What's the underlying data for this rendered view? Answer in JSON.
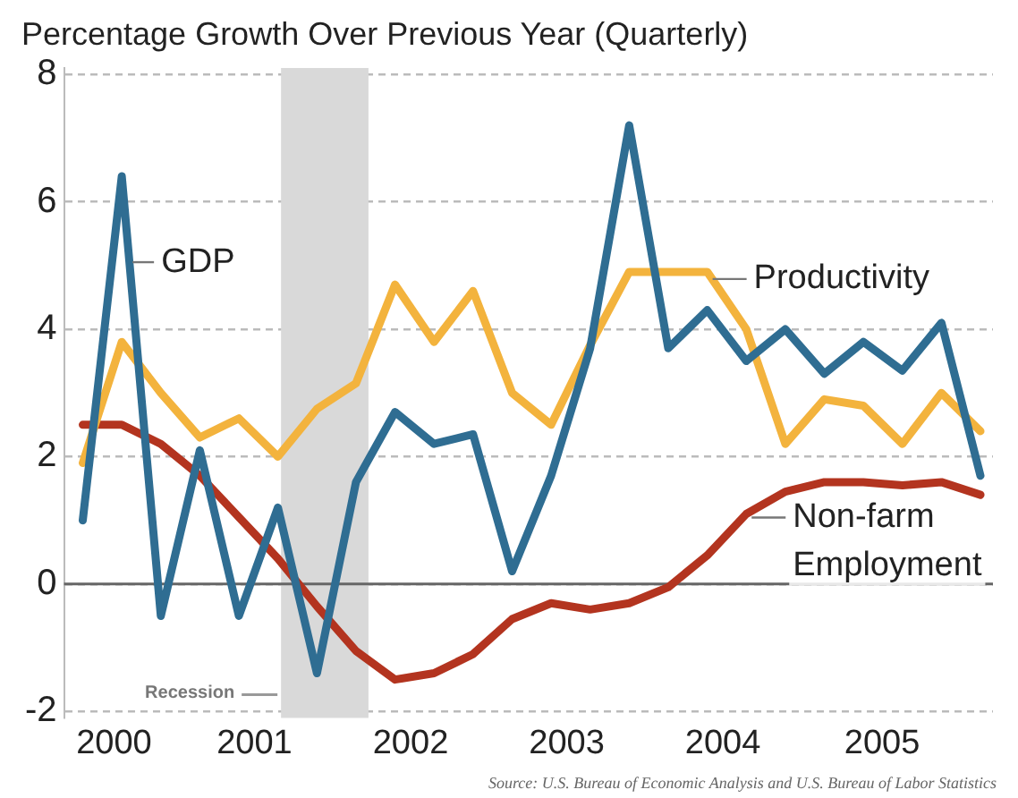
{
  "chart_data": {
    "type": "line",
    "title": "Percentage Growth Over Previous Year (Quarterly)",
    "x": [
      2000,
      2000.25,
      2000.5,
      2000.75,
      2001,
      2001.25,
      2001.5,
      2001.75,
      2002,
      2002.25,
      2002.5,
      2002.75,
      2003,
      2003.25,
      2003.5,
      2003.75,
      2004,
      2004.25,
      2004.5,
      2004.75,
      2005,
      2005.25,
      2005.5,
      2005.75
    ],
    "series": [
      {
        "name": "GDP",
        "color": "#2f6d92",
        "values": [
          1.0,
          6.4,
          -0.5,
          2.1,
          -0.5,
          1.2,
          -1.4,
          1.6,
          2.7,
          2.2,
          2.35,
          0.2,
          1.7,
          3.7,
          7.2,
          3.7,
          4.3,
          3.5,
          4.0,
          3.3,
          3.8,
          3.35,
          4.1,
          1.7
        ]
      },
      {
        "name": "Productivity",
        "color": "#f3b33d",
        "values": [
          1.9,
          3.8,
          3.0,
          2.3,
          2.6,
          2.0,
          2.75,
          3.15,
          4.7,
          3.8,
          4.6,
          3.0,
          2.5,
          3.75,
          4.9,
          4.9,
          4.9,
          4.0,
          2.2,
          2.9,
          2.8,
          2.2,
          3.0,
          2.4
        ]
      },
      {
        "name": "Non-farm Employment",
        "color": "#b3341f",
        "values": [
          2.5,
          2.5,
          2.2,
          1.7,
          1.05,
          0.4,
          -0.35,
          -1.05,
          -1.5,
          -1.4,
          -1.1,
          -0.55,
          -0.3,
          -0.4,
          -0.3,
          -0.05,
          0.45,
          1.1,
          1.45,
          1.6,
          1.6,
          1.55,
          1.6,
          1.4
        ]
      }
    ],
    "xlim": [
      1999.88,
      2005.83
    ],
    "xticks": [
      {
        "value": 2000.2,
        "label": "2000"
      },
      {
        "value": 2001.1,
        "label": "2001"
      },
      {
        "value": 2002.1,
        "label": "2002"
      },
      {
        "value": 2003.1,
        "label": "2003"
      },
      {
        "value": 2004.1,
        "label": "2004"
      },
      {
        "value": 2005.12,
        "label": "2005"
      }
    ],
    "ylim": [
      -2.1,
      8.1
    ],
    "yticks": [
      -2,
      0,
      2,
      4,
      6,
      8
    ],
    "grid": "y",
    "legend": false,
    "marker": "none",
    "line_style": "solid",
    "bands": [
      {
        "axis": "x",
        "from": 2001.27,
        "to": 2001.83,
        "label": "Recession",
        "color": "#d9d9d9"
      }
    ],
    "annotations": [
      "Source: U.S. Bureau of Economic Analysis and U.S. Bureau of Labor Statistics"
    ]
  }
}
